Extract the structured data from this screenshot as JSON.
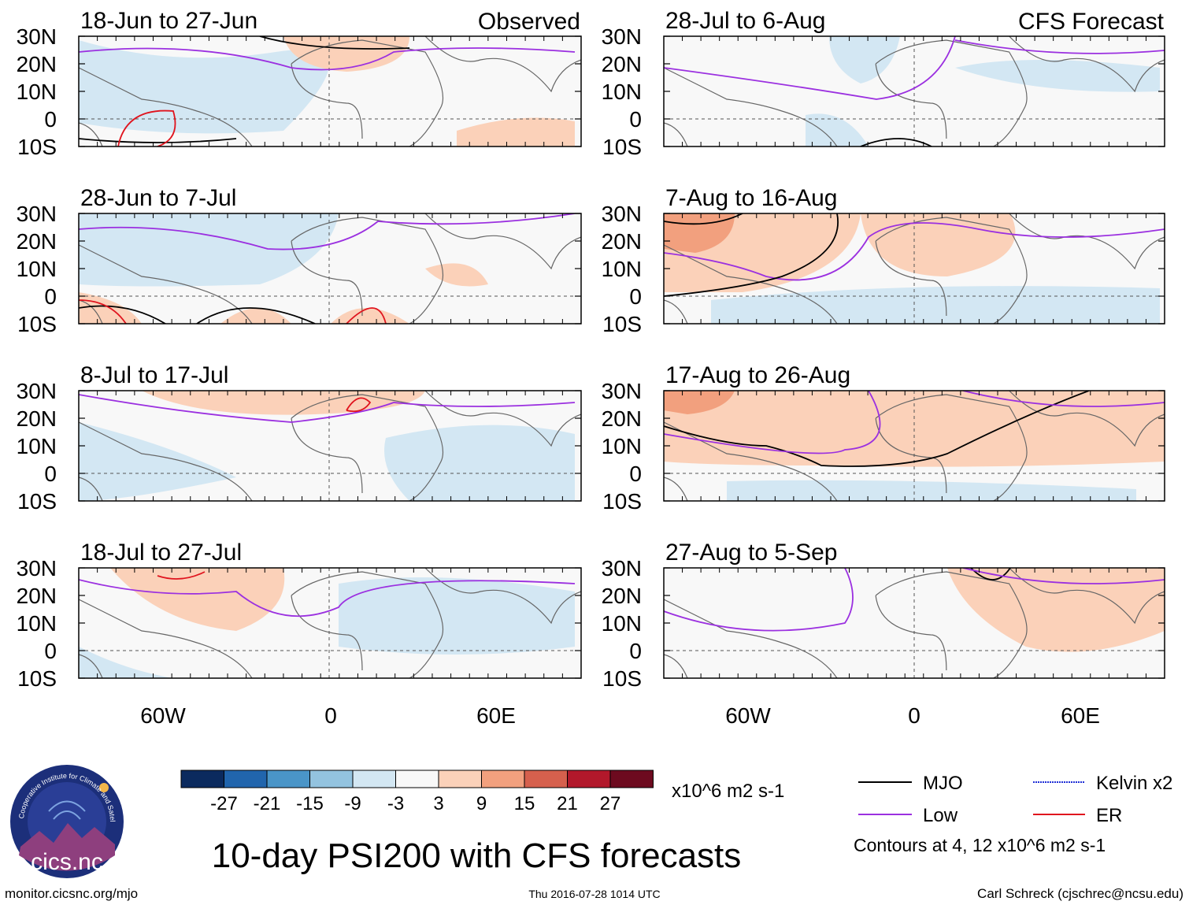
{
  "page": {
    "main_title": "10-day PSI200 with CFS forecasts",
    "site": "monitor.cicsnc.org/mjo",
    "timestamp": "Thu 2016-07-28 1014 UTC",
    "author": "Carl Schreck (cjschrec@ncsu.edu)",
    "logo_text": "cics.nc",
    "logo_ring_text": "Cooperative Institute for Climate and Satellites"
  },
  "column_headers": {
    "left": "Observed",
    "right": "CFS Forecast"
  },
  "axes": {
    "lat_labels": [
      "30N",
      "20N",
      "10N",
      "0",
      "10S"
    ],
    "lon_labels": [
      "60W",
      "0",
      "60E"
    ]
  },
  "panels": [
    {
      "id": "obs-1",
      "column": "left",
      "date_range": "18-Jun to 27-Jun"
    },
    {
      "id": "obs-2",
      "column": "left",
      "date_range": "28-Jun to 7-Jul"
    },
    {
      "id": "obs-3",
      "column": "left",
      "date_range": "8-Jul to 17-Jul"
    },
    {
      "id": "obs-4",
      "column": "left",
      "date_range": "18-Jul to 27-Jul"
    },
    {
      "id": "fc-1",
      "column": "right",
      "date_range": "28-Jul to 6-Aug"
    },
    {
      "id": "fc-2",
      "column": "right",
      "date_range": "7-Aug to 16-Aug"
    },
    {
      "id": "fc-3",
      "column": "right",
      "date_range": "17-Aug to 26-Aug"
    },
    {
      "id": "fc-4",
      "column": "right",
      "date_range": "27-Aug to 5-Sep"
    }
  ],
  "colorbar": {
    "labels": [
      "-27",
      "-21",
      "-15",
      "-9",
      "-3",
      "3",
      "9",
      "15",
      "21",
      "27"
    ],
    "colors": [
      "#0b2a5e",
      "#2165ad",
      "#4a95c8",
      "#93c3df",
      "#d3e7f3",
      "#f8f8f8",
      "#fbd1b9",
      "#f2a07e",
      "#d6604d",
      "#b2182b",
      "#6d0a1f"
    ],
    "units": "x10^6 m2 s-1"
  },
  "legend": {
    "items": [
      {
        "label": "MJO",
        "color": "#000000"
      },
      {
        "label": "Kelvin x2",
        "color": "#1f2fd6"
      },
      {
        "label": "Low",
        "color": "#9b30e0"
      },
      {
        "label": "ER",
        "color": "#e0141e"
      }
    ],
    "note": "Contours at 4, 12 x10^6 m2 s-1"
  }
}
